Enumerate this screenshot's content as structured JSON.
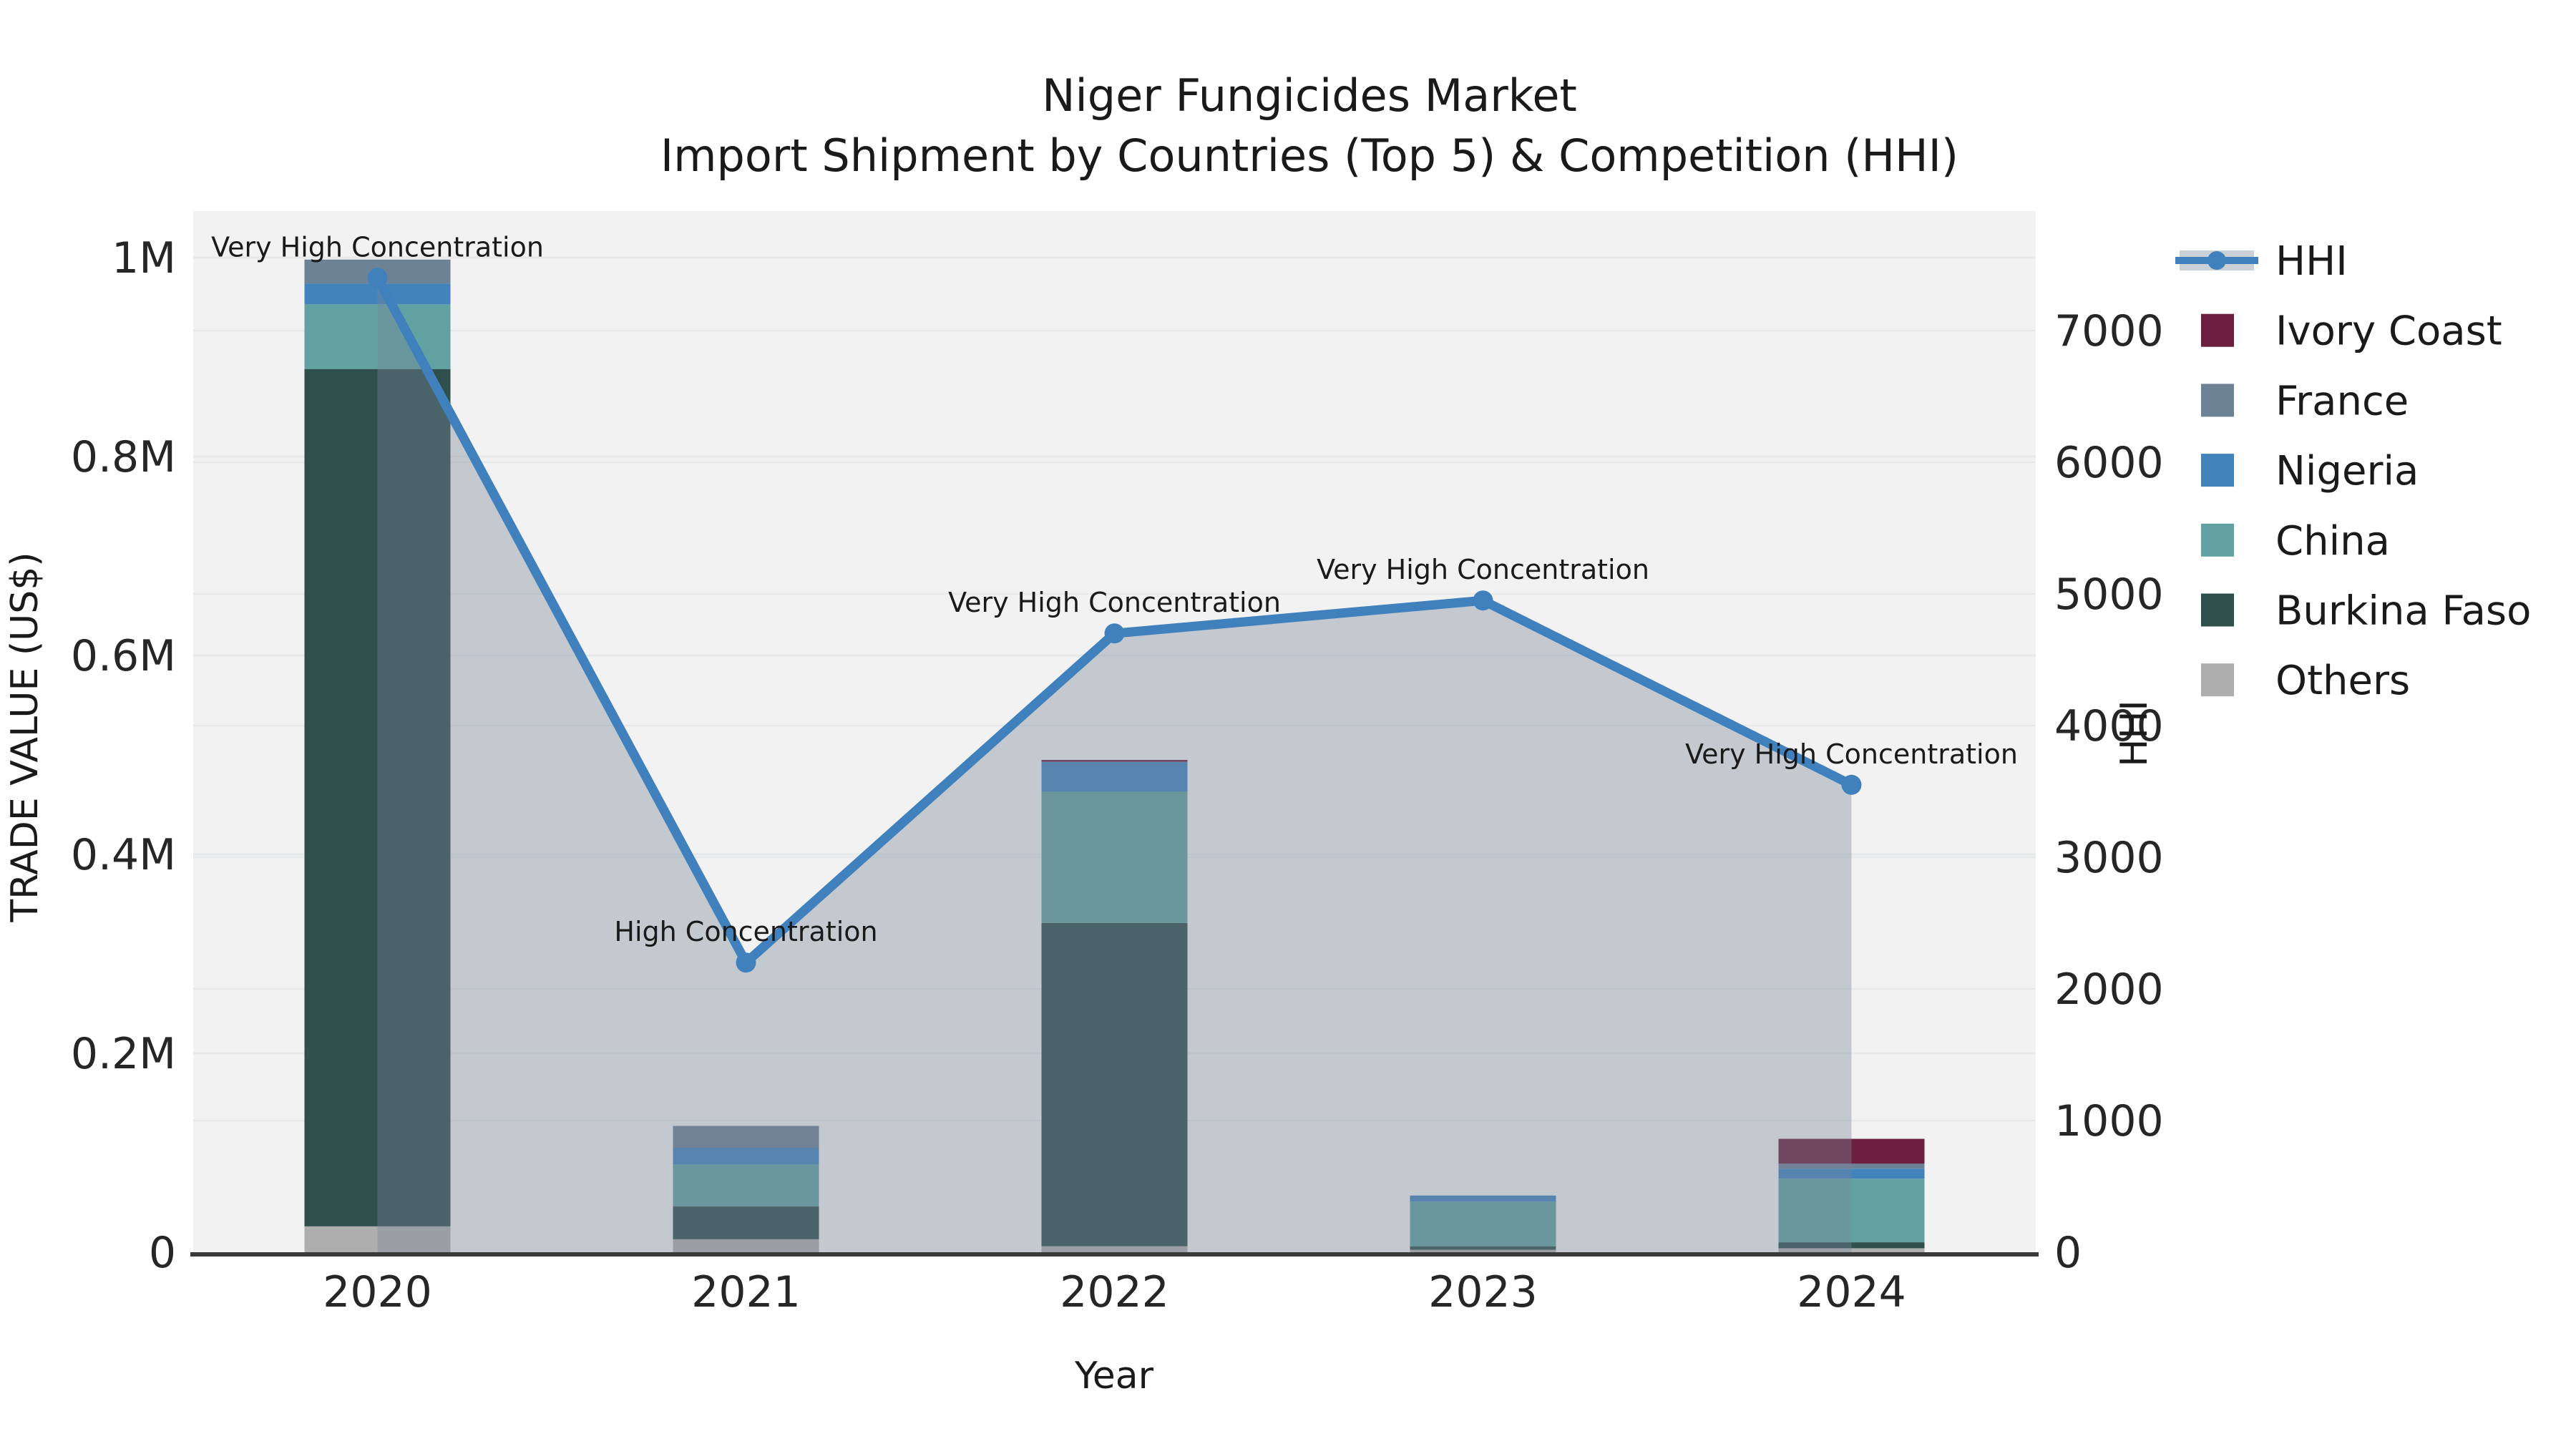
{
  "title": {
    "line1": "Niger Fungicides Market",
    "line2": "Import Shipment by Countries (Top 5) & Competition (HHI)"
  },
  "colors": {
    "plot_bg": "#f2f2f3",
    "grid": "#e7e8ea",
    "spine": "#3a3a3a",
    "text": "#1a1a1a",
    "hhi_line": "#4080bd",
    "area_fill": "rgba(120,134,153,0.38)",
    "ivory_coast": "#6d1f3f",
    "france": "#6e8296",
    "nigeria": "#4383bb",
    "china": "#5fa2a1",
    "burkina_faso": "#2f4f4d",
    "others": "#aeaeae"
  },
  "chart_data": {
    "type": "combo: stacked-bar + line (dual axis)",
    "categories": [
      "2020",
      "2021",
      "2022",
      "2023",
      "2024"
    ],
    "bar_series": [
      {
        "name": "Others",
        "color": "#aeaeae",
        "values": [
          26000,
          13000,
          6000,
          2500,
          4000
        ]
      },
      {
        "name": "Burkina Faso",
        "color": "#2f4f4d",
        "values": [
          862000,
          33000,
          325000,
          3500,
          6000
        ]
      },
      {
        "name": "China",
        "color": "#5fa2a1",
        "values": [
          65000,
          42000,
          132000,
          45000,
          64000
        ]
      },
      {
        "name": "Nigeria",
        "color": "#4383bb",
        "values": [
          21000,
          17000,
          30000,
          6000,
          10000
        ]
      },
      {
        "name": "France",
        "color": "#6e8296",
        "values": [
          24000,
          22000,
          0,
          0,
          5000
        ]
      },
      {
        "name": "Ivory Coast",
        "color": "#6d1f3f",
        "values": [
          0,
          0,
          2000,
          0,
          25000
        ]
      }
    ],
    "line_series": {
      "name": "HHI",
      "color": "#4080bd",
      "area_fill": "rgba(120,134,153,0.38)",
      "values": [
        7400,
        2200,
        4700,
        4950,
        3550
      ]
    },
    "annotations": [
      {
        "year": "2020",
        "text": "Very High Concentration"
      },
      {
        "year": "2021",
        "text": "High Concentration"
      },
      {
        "year": "2022",
        "text": "Very High Concentration"
      },
      {
        "year": "2023",
        "text": "Very High Concentration"
      },
      {
        "year": "2024",
        "text": "Very High Concentration"
      }
    ],
    "left_axis": {
      "label": "TRADE VALUE (US$)",
      "tick_labels": [
        "0",
        "0.2M",
        "0.4M",
        "0.6M",
        "0.8M",
        "1M"
      ],
      "tick_values": [
        0,
        200000,
        400000,
        600000,
        800000,
        1000000
      ],
      "range": [
        0,
        1046000
      ],
      "grid": "on"
    },
    "right_axis": {
      "label": "HHI",
      "tick_labels": [
        "0",
        "1000",
        "2000",
        "3000",
        "4000",
        "5000",
        "6000",
        "7000"
      ],
      "tick_values": [
        0,
        1000,
        2000,
        3000,
        4000,
        5000,
        6000,
        7000
      ],
      "range": [
        0,
        7900
      ],
      "grid": "on"
    },
    "x_axis": {
      "label": "Year"
    },
    "legend": {
      "position": "right",
      "entries": [
        {
          "label": "HHI",
          "type": "line",
          "color": "#4080bd"
        },
        {
          "label": "Ivory Coast",
          "type": "patch",
          "color": "#6d1f3f"
        },
        {
          "label": "France",
          "type": "patch",
          "color": "#6e8296"
        },
        {
          "label": "Nigeria",
          "type": "patch",
          "color": "#4383bb"
        },
        {
          "label": "China",
          "type": "patch",
          "color": "#5fa2a1"
        },
        {
          "label": "Burkina Faso",
          "type": "patch",
          "color": "#2f4f4d"
        },
        {
          "label": "Others",
          "type": "patch",
          "color": "#aeaeae"
        }
      ]
    }
  }
}
